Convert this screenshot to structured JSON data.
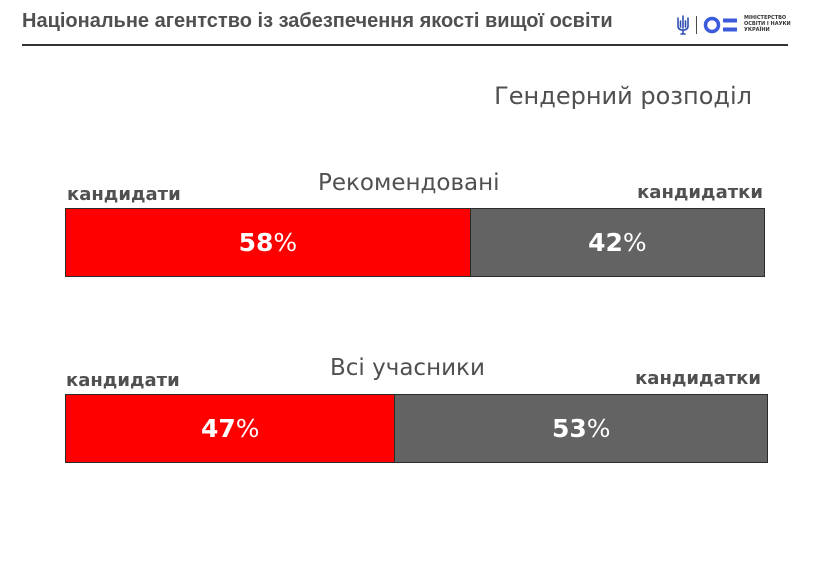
{
  "header": {
    "title": "Національне агентство із забезпечення якості вищої освіти",
    "ministry_lines": [
      "МІНІСТЕРСТВО",
      "ОСВІТИ І НАУКИ",
      "УКРАЇНИ"
    ]
  },
  "colors": {
    "men": "#ff0000",
    "women": "#636363",
    "text": "#505050"
  },
  "chart_data": {
    "type": "bar",
    "stacked": true,
    "orientation": "horizontal",
    "title": "Гендерний розподіл",
    "series_labels": [
      "кандидати",
      "кандидатки"
    ],
    "categories": [
      "Рекомендовані",
      "Всі учасники"
    ],
    "series": [
      {
        "name": "кандидати",
        "values": [
          58,
          47
        ],
        "labels": [
          "58%",
          "47%"
        ]
      },
      {
        "name": "кандидатки",
        "values": [
          42,
          53
        ],
        "labels": [
          "42%",
          "53%"
        ]
      }
    ]
  }
}
